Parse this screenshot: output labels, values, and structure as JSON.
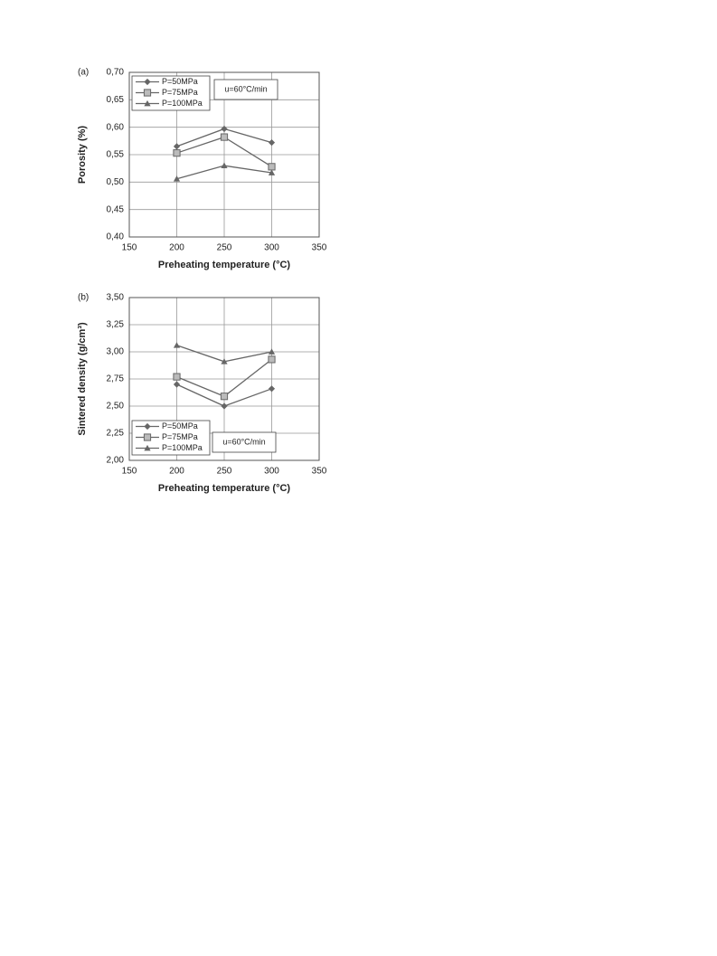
{
  "chart_data": [
    {
      "type": "line",
      "panel_label": "(a)",
      "ylabel": "Porosity  (%)",
      "xlabel": "Preheating temperature (°C)",
      "annotation": "u=60°C/min",
      "legend": "upper left",
      "grid": true,
      "x": [
        200,
        250,
        300
      ],
      "series": [
        {
          "name": "P=50MPa",
          "color": "#666666",
          "marker": "diamond",
          "values": [
            0.565,
            0.597,
            0.572
          ]
        },
        {
          "name": "P=75MPa",
          "color": "#666666",
          "marker": "square",
          "values": [
            0.553,
            0.582,
            0.528
          ]
        },
        {
          "name": "P=100MPa",
          "color": "#666666",
          "marker": "triangle",
          "values": [
            0.506,
            0.53,
            0.517
          ]
        }
      ],
      "xlim": [
        150,
        350
      ],
      "xticks": [
        150,
        200,
        250,
        300,
        350
      ],
      "ylim": [
        0.4,
        0.7
      ],
      "yticks": [
        {
          "value": 0.4,
          "label": "0,40"
        },
        {
          "value": 0.45,
          "label": "0,45"
        },
        {
          "value": 0.5,
          "label": "0,50"
        },
        {
          "value": 0.55,
          "label": "0,55"
        },
        {
          "value": 0.6,
          "label": "0,60"
        },
        {
          "value": 0.65,
          "label": "0,65"
        },
        {
          "value": 0.7,
          "label": "0,70"
        }
      ]
    },
    {
      "type": "line",
      "panel_label": "(b)",
      "ylabel": "Sintered density (g/cm³)",
      "xlabel": "Preheating temperature (°C)",
      "annotation": "u=60°C/min",
      "legend": "lower left",
      "grid": true,
      "x": [
        200,
        250,
        300
      ],
      "series": [
        {
          "name": "P=50MPa",
          "color": "#666666",
          "marker": "diamond",
          "values": [
            2.7,
            2.5,
            2.66
          ]
        },
        {
          "name": "P=75MPa",
          "color": "#666666",
          "marker": "square",
          "values": [
            2.77,
            2.59,
            2.93
          ]
        },
        {
          "name": "P=100MPa",
          "color": "#666666",
          "marker": "triangle",
          "values": [
            3.06,
            2.91,
            3.0
          ]
        }
      ],
      "xlim": [
        150,
        350
      ],
      "xticks": [
        150,
        200,
        250,
        300,
        350
      ],
      "ylim": [
        2.0,
        3.5
      ],
      "yticks": [
        {
          "value": 2.0,
          "label": "2,00"
        },
        {
          "value": 2.25,
          "label": "2,25"
        },
        {
          "value": 2.5,
          "label": "2,50"
        },
        {
          "value": 2.75,
          "label": "2,75"
        },
        {
          "value": 3.0,
          "label": "3,00"
        },
        {
          "value": 3.25,
          "label": "3,25"
        },
        {
          "value": 3.5,
          "label": "3,50"
        }
      ]
    }
  ]
}
